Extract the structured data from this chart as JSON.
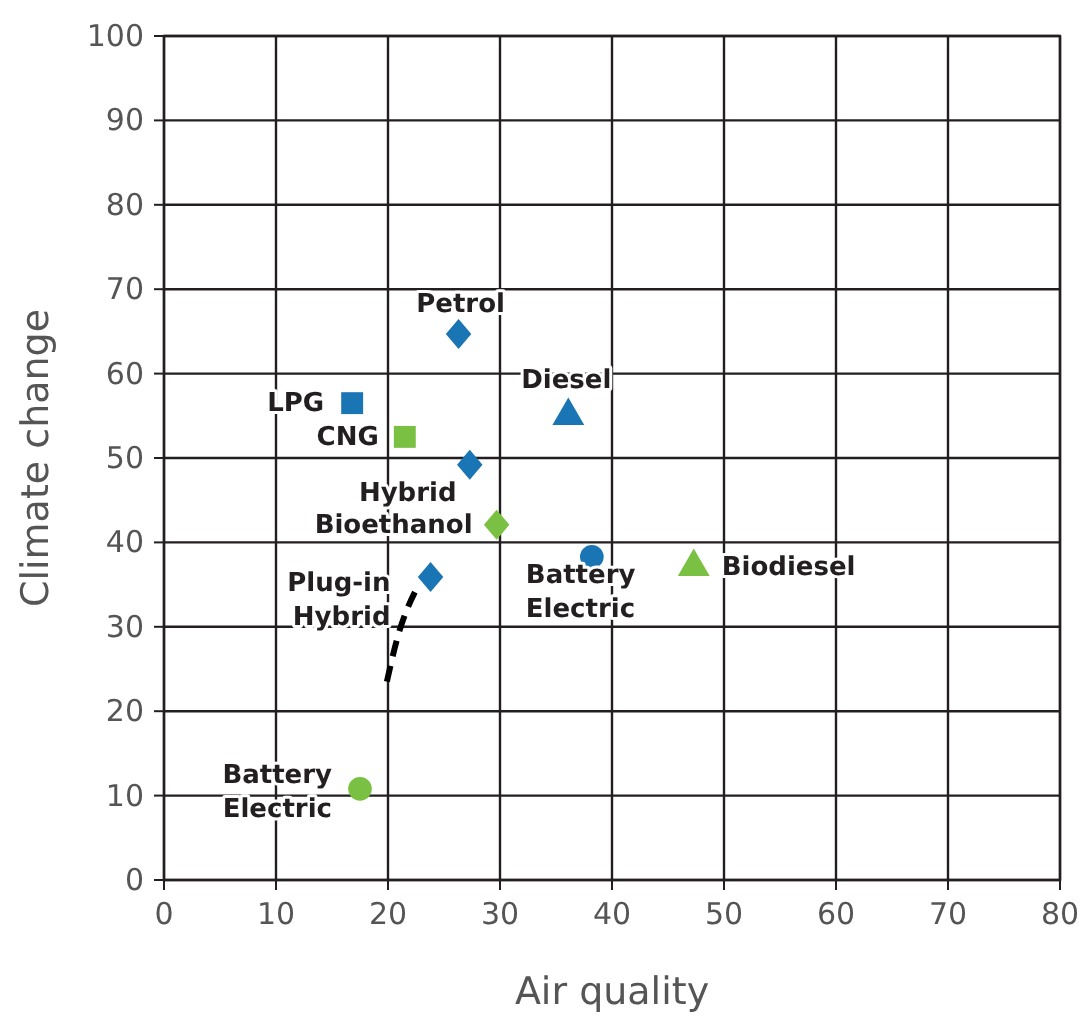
{
  "chart_data": {
    "type": "scatter",
    "xlabel": "Air quality",
    "ylabel": "Climate change",
    "xlim": [
      0,
      80
    ],
    "xticks": [
      0,
      10,
      20,
      30,
      40,
      50,
      60,
      70,
      80
    ],
    "ylim": [
      0,
      100
    ],
    "yticks": [
      0,
      10,
      20,
      30,
      40,
      50,
      60,
      70,
      80,
      90,
      100
    ],
    "grid": true,
    "series": [
      {
        "name": "Petrol",
        "color": "#1a75b4",
        "marker": "diamond",
        "x": [
          26.3
        ],
        "values": [
          64.7
        ]
      },
      {
        "name": "LPG",
        "color": "#1a75b4",
        "marker": "square",
        "x": [
          16.8
        ],
        "values": [
          56.5
        ]
      },
      {
        "name": "CNG",
        "color": "#7ac143",
        "marker": "square",
        "x": [
          21.5
        ],
        "values": [
          52.5
        ]
      },
      {
        "name": "Hybrid",
        "color": "#1a75b4",
        "marker": "diamond",
        "x": [
          27.3
        ],
        "values": [
          49.2
        ]
      },
      {
        "name": "Bioethanol",
        "color": "#7ac143",
        "marker": "diamond",
        "x": [
          29.7
        ],
        "values": [
          42.1
        ]
      },
      {
        "name": "Battery Electric",
        "color": "#1a75b4",
        "marker": "circle",
        "x": [
          38.2
        ],
        "values": [
          38.3
        ]
      },
      {
        "name": "Plug-in Hybrid",
        "color": "#1a75b4",
        "marker": "diamond",
        "x": [
          23.8
        ],
        "values": [
          35.9
        ]
      },
      {
        "name": "Diesel",
        "color": "#1a75b4",
        "marker": "triangle",
        "x": [
          36.1
        ],
        "values": [
          55.0
        ]
      },
      {
        "name": "Biodiesel",
        "color": "#7ac143",
        "marker": "triangle",
        "x": [
          47.3
        ],
        "values": [
          37.1
        ]
      },
      {
        "name": "Battery Electric",
        "color": "#7ac143",
        "marker": "circle",
        "x": [
          17.5
        ],
        "values": [
          10.8
        ]
      },
      {
        "type": "line",
        "color": "#000000",
        "marker": "none",
        "line_style": "dashed",
        "x": [
          19.9,
          20.8,
          22.7
        ],
        "values": [
          23.5,
          28.5,
          34.9
        ]
      }
    ]
  }
}
